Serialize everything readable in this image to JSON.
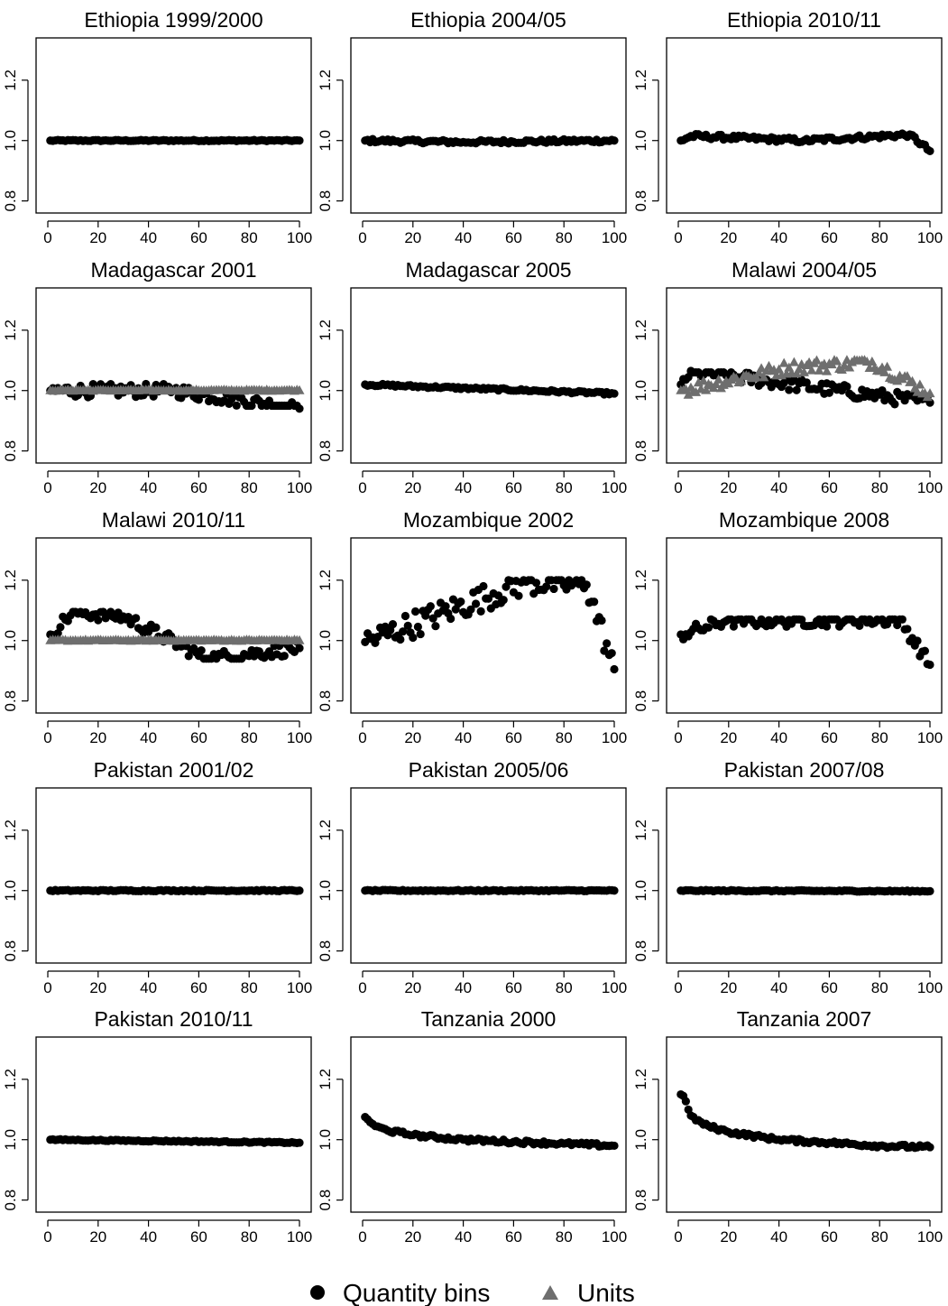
{
  "figure": {
    "legend": [
      {
        "label": "Quantity bins",
        "marker": "circle",
        "color": "#000000"
      },
      {
        "label": "Units",
        "marker": "triangle",
        "color": "#6e6e6e"
      }
    ],
    "x_ticks": [
      "0",
      "20",
      "40",
      "60",
      "80",
      "100"
    ],
    "y_ticks": [
      "0.8",
      "1.0",
      "1.2"
    ]
  },
  "chart_data": [
    {
      "type": "scatter",
      "title": "Ethiopia 1999/2000",
      "xlim": [
        0,
        100
      ],
      "ylim": [
        0.76,
        1.34
      ],
      "series": [
        {
          "name": "Quantity bins",
          "pattern": "flat",
          "x": [
            1,
            100
          ],
          "y": [
            1.0,
            1.0
          ]
        }
      ]
    },
    {
      "type": "scatter",
      "title": "Ethiopia 2004/05",
      "xlim": [
        0,
        100
      ],
      "ylim": [
        0.76,
        1.34
      ],
      "series": [
        {
          "name": "Quantity bins",
          "pattern": "slight-rise",
          "x": [
            1,
            40,
            100
          ],
          "y": [
            1.0,
            0.995,
            1.0
          ]
        }
      ]
    },
    {
      "type": "scatter",
      "title": "Ethiopia 2010/11",
      "xlim": [
        0,
        100
      ],
      "ylim": [
        0.76,
        1.34
      ],
      "series": [
        {
          "name": "Quantity bins",
          "pattern": "flat-with-end-drop",
          "x": [
            1,
            5,
            50,
            92,
            100
          ],
          "y": [
            1.0,
            1.015,
            1.0,
            1.02,
            0.965
          ]
        }
      ]
    },
    {
      "type": "scatter",
      "title": "Madagascar 2001",
      "xlim": [
        0,
        100
      ],
      "ylim": [
        0.76,
        1.34
      ],
      "series": [
        {
          "name": "Quantity bins",
          "pattern": "scatter",
          "x": [
            1,
            50,
            100
          ],
          "y": [
            1.0,
            1.0,
            0.94
          ],
          "range": [
            0.95,
            1.04
          ]
        },
        {
          "name": "Units",
          "pattern": "flat",
          "x": [
            1,
            100
          ],
          "y": [
            1.0,
            1.0
          ]
        }
      ]
    },
    {
      "type": "scatter",
      "title": "Madagascar 2005",
      "xlim": [
        0,
        100
      ],
      "ylim": [
        0.76,
        1.34
      ],
      "series": [
        {
          "name": "Quantity bins",
          "pattern": "gentle-decline",
          "x": [
            1,
            100
          ],
          "y": [
            1.02,
            0.99
          ]
        }
      ]
    },
    {
      "type": "scatter",
      "title": "Malawi 2004/05",
      "xlim": [
        0,
        100
      ],
      "ylim": [
        0.76,
        1.34
      ],
      "series": [
        {
          "name": "Quantity bins",
          "pattern": "scatter",
          "x": [
            1,
            5,
            100
          ],
          "y": [
            1.02,
            1.065,
            0.96
          ],
          "range": [
            0.94,
            1.06
          ]
        },
        {
          "name": "Units",
          "pattern": "scatter",
          "x": [
            1,
            44,
            77,
            100
          ],
          "y": [
            1.0,
            1.075,
            1.095,
            0.99
          ],
          "range": [
            0.94,
            1.1
          ]
        }
      ]
    },
    {
      "type": "scatter",
      "title": "Malawi 2010/11",
      "xlim": [
        0,
        100
      ],
      "ylim": [
        0.76,
        1.34
      ],
      "series": [
        {
          "name": "Quantity bins",
          "pattern": "scatter",
          "x": [
            1,
            10,
            30,
            63,
            100
          ],
          "y": [
            1.02,
            1.095,
            1.08,
            0.94,
            0.975
          ],
          "range": [
            0.94,
            1.095
          ]
        },
        {
          "name": "Units",
          "pattern": "flat",
          "x": [
            1,
            100
          ],
          "y": [
            1.0,
            1.0
          ]
        }
      ]
    },
    {
      "type": "scatter",
      "title": "Mozambique 2002",
      "xlim": [
        0,
        100
      ],
      "ylim": [
        0.76,
        1.34
      ],
      "series": [
        {
          "name": "Quantity bins",
          "pattern": "wide-scatter",
          "x": [
            1,
            65,
            89,
            100
          ],
          "y": [
            0.995,
            1.195,
            1.185,
            0.905
          ],
          "range": [
            0.9,
            1.2
          ]
        }
      ]
    },
    {
      "type": "scatter",
      "title": "Mozambique 2008",
      "xlim": [
        0,
        100
      ],
      "ylim": [
        0.76,
        1.34
      ],
      "series": [
        {
          "name": "Quantity bins",
          "pattern": "declining-scatter",
          "x": [
            1,
            19,
            88,
            100
          ],
          "y": [
            1.02,
            1.065,
            1.07,
            0.92
          ],
          "range": [
            0.92,
            1.07
          ]
        }
      ]
    },
    {
      "type": "scatter",
      "title": "Pakistan 2001/02",
      "xlim": [
        0,
        100
      ],
      "ylim": [
        0.76,
        1.34
      ],
      "series": [
        {
          "name": "Quantity bins",
          "pattern": "flat",
          "x": [
            1,
            100
          ],
          "y": [
            1.0,
            1.0
          ]
        }
      ]
    },
    {
      "type": "scatter",
      "title": "Pakistan 2005/06",
      "xlim": [
        0,
        100
      ],
      "ylim": [
        0.76,
        1.34
      ],
      "series": [
        {
          "name": "Quantity bins",
          "pattern": "flat",
          "x": [
            1,
            100
          ],
          "y": [
            1.0,
            1.0
          ]
        }
      ]
    },
    {
      "type": "scatter",
      "title": "Pakistan 2007/08",
      "xlim": [
        0,
        100
      ],
      "ylim": [
        0.76,
        1.34
      ],
      "series": [
        {
          "name": "Quantity bins",
          "pattern": "flat",
          "x": [
            1,
            100
          ],
          "y": [
            1.0,
            0.998
          ]
        }
      ]
    },
    {
      "type": "scatter",
      "title": "Pakistan 2010/11",
      "xlim": [
        0,
        100
      ],
      "ylim": [
        0.76,
        1.34
      ],
      "series": [
        {
          "name": "Quantity bins",
          "pattern": "flat",
          "x": [
            1,
            100
          ],
          "y": [
            1.0,
            0.99
          ]
        }
      ]
    },
    {
      "type": "scatter",
      "title": "Tanzania 2000",
      "xlim": [
        0,
        100
      ],
      "ylim": [
        0.76,
        1.34
      ],
      "series": [
        {
          "name": "Quantity bins",
          "pattern": "decay",
          "x": [
            1,
            5,
            10,
            20,
            40,
            60,
            80,
            100
          ],
          "y": [
            1.075,
            1.045,
            1.03,
            1.015,
            1.0,
            0.993,
            0.987,
            0.98
          ]
        }
      ]
    },
    {
      "type": "scatter",
      "title": "Tanzania 2007",
      "xlim": [
        0,
        100
      ],
      "ylim": [
        0.76,
        1.34
      ],
      "series": [
        {
          "name": "Quantity bins",
          "pattern": "decay",
          "x": [
            1,
            2,
            5,
            10,
            20,
            40,
            60,
            80,
            100
          ],
          "y": [
            1.15,
            1.145,
            1.08,
            1.05,
            1.025,
            1.0,
            0.99,
            0.98,
            0.975
          ]
        }
      ]
    }
  ]
}
